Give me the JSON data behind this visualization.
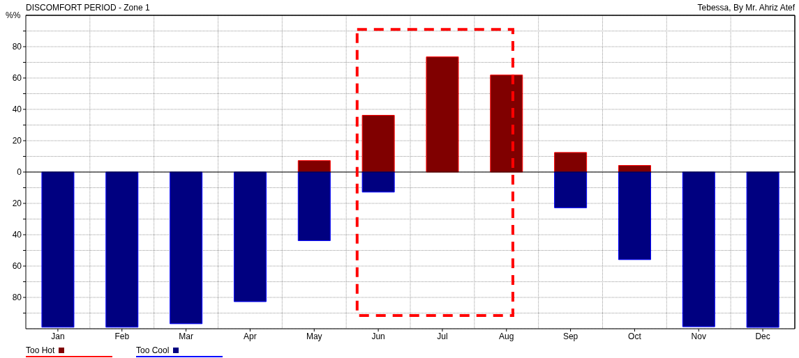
{
  "chart_data": {
    "type": "bar",
    "title": "DISCOMFORT PERIOD - Zone 1",
    "subtitle": "Tebessa, By Mr. Ahriz Atef",
    "ylabel": "%%",
    "categories": [
      "Jan",
      "Feb",
      "Mar",
      "Apr",
      "May",
      "Jun",
      "Jul",
      "Aug",
      "Sep",
      "Oct",
      "Nov",
      "Dec"
    ],
    "stacked": true,
    "series": [
      {
        "name": "Too Hot",
        "color": "#800000",
        "values": [
          0,
          0,
          0,
          0,
          7.3,
          36.2,
          73.5,
          61.9,
          12.5,
          4.2,
          0,
          0
        ]
      },
      {
        "name": "Too Cool",
        "color": "#000080",
        "values": [
          -99,
          -99,
          -96.8,
          -82.7,
          -43.8,
          -12.8,
          0,
          0,
          -22.8,
          -55.9,
          -98.7,
          -99.1
        ]
      }
    ],
    "ylim": [
      -100,
      100
    ],
    "yticks": [
      {
        "value": -90,
        "label": null
      },
      {
        "value": -80,
        "label": "80"
      },
      {
        "value": -70,
        "label": null
      },
      {
        "value": -60,
        "label": "60"
      },
      {
        "value": -50,
        "label": null
      },
      {
        "value": -40,
        "label": "40"
      },
      {
        "value": -30,
        "label": null
      },
      {
        "value": -20,
        "label": "20"
      },
      {
        "value": -10,
        "label": null
      },
      0,
      {
        "value": 10,
        "label": null
      },
      20,
      {
        "value": 30,
        "label": null
      },
      40,
      {
        "value": 50,
        "label": null
      },
      60,
      {
        "value": 70,
        "label": null
      },
      80,
      {
        "value": 90,
        "label": null
      }
    ],
    "ref_lines": [
      {
        "axis": "y",
        "value": 0,
        "color": "#000000"
      }
    ],
    "grid": true,
    "legend": "bottom left"
  }
}
